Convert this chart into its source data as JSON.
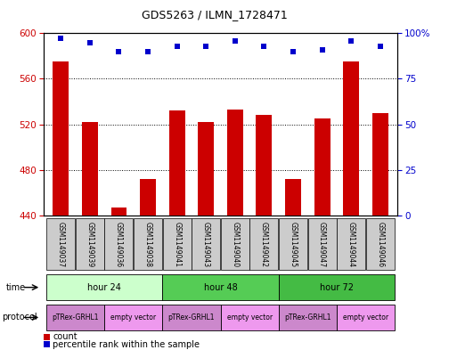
{
  "title": "GDS5263 / ILMN_1728471",
  "samples": [
    "GSM1149037",
    "GSM1149039",
    "GSM1149036",
    "GSM1149038",
    "GSM1149041",
    "GSM1149043",
    "GSM1149040",
    "GSM1149042",
    "GSM1149045",
    "GSM1149047",
    "GSM1149044",
    "GSM1149046"
  ],
  "bar_values": [
    575,
    522,
    447,
    472,
    532,
    522,
    533,
    528,
    472,
    525,
    575,
    530
  ],
  "percentile_values": [
    97,
    95,
    90,
    90,
    93,
    93,
    96,
    93,
    90,
    91,
    96,
    93
  ],
  "bar_color": "#cc0000",
  "percentile_color": "#0000cc",
  "ylim_left": [
    440,
    600
  ],
  "ylim_right": [
    0,
    100
  ],
  "yticks_left": [
    440,
    480,
    520,
    560,
    600
  ],
  "yticks_right": [
    0,
    25,
    50,
    75,
    100
  ],
  "grid_values": [
    480,
    520,
    560
  ],
  "time_groups": [
    {
      "label": "hour 24",
      "start": 0,
      "end": 4,
      "color": "#ccffcc"
    },
    {
      "label": "hour 48",
      "start": 4,
      "end": 8,
      "color": "#55cc55"
    },
    {
      "label": "hour 72",
      "start": 8,
      "end": 12,
      "color": "#44bb44"
    }
  ],
  "protocol_groups": [
    {
      "label": "pTRex-GRHL1",
      "start": 0,
      "end": 2,
      "color": "#cc88cc"
    },
    {
      "label": "empty vector",
      "start": 2,
      "end": 4,
      "color": "#ee99ee"
    },
    {
      "label": "pTRex-GRHL1",
      "start": 4,
      "end": 6,
      "color": "#cc88cc"
    },
    {
      "label": "empty vector",
      "start": 6,
      "end": 8,
      "color": "#ee99ee"
    },
    {
      "label": "pTRex-GRHL1",
      "start": 8,
      "end": 10,
      "color": "#cc88cc"
    },
    {
      "label": "empty vector",
      "start": 10,
      "end": 12,
      "color": "#ee99ee"
    }
  ],
  "legend_count_color": "#cc0000",
  "legend_percentile_color": "#0000cc",
  "bar_width": 0.55,
  "sample_box_color": "#cccccc",
  "background_color": "#ffffff"
}
